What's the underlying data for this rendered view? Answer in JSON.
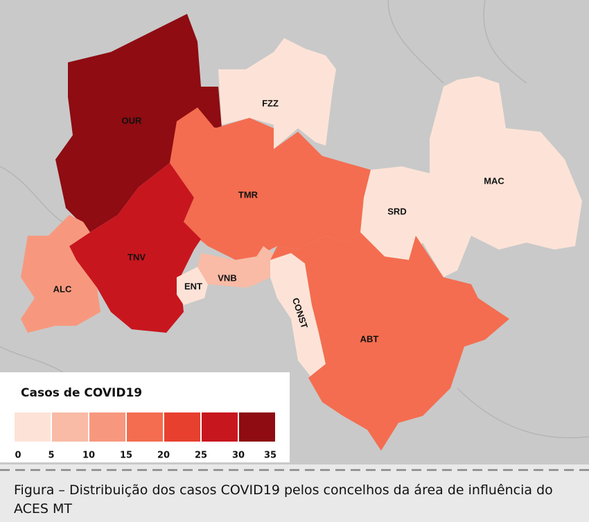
{
  "map": {
    "legend": {
      "title": "Casos de COVID19",
      "ticks": [
        0,
        5,
        10,
        15,
        20,
        25,
        30,
        35
      ],
      "colors": [
        "#fde3d7",
        "#f9bba6",
        "#f7987e",
        "#f46d50",
        "#e8402f",
        "#c8161e",
        "#8e0c12"
      ]
    },
    "regions": [
      {
        "label": "OUR",
        "color": "#8e0c12"
      },
      {
        "label": "FZZ",
        "color": "#fde3d7"
      },
      {
        "label": "MAC",
        "color": "#fde3d7"
      },
      {
        "label": "SRD",
        "color": "#fde3d7"
      },
      {
        "label": "TMR",
        "color": "#f46d50"
      },
      {
        "label": "TNV",
        "color": "#c8161e"
      },
      {
        "label": "ALC",
        "color": "#f7987e"
      },
      {
        "label": "VNB",
        "color": "#f9bba6"
      },
      {
        "label": "ENT",
        "color": "#fde3d7"
      },
      {
        "label": "CONST",
        "color": "#fde3d7"
      },
      {
        "label": "ABT",
        "color": "#f46d50"
      }
    ]
  },
  "caption": "Figura – Distribuição dos casos COVID19 pelos concelhos da área de influência do ACES MT"
}
